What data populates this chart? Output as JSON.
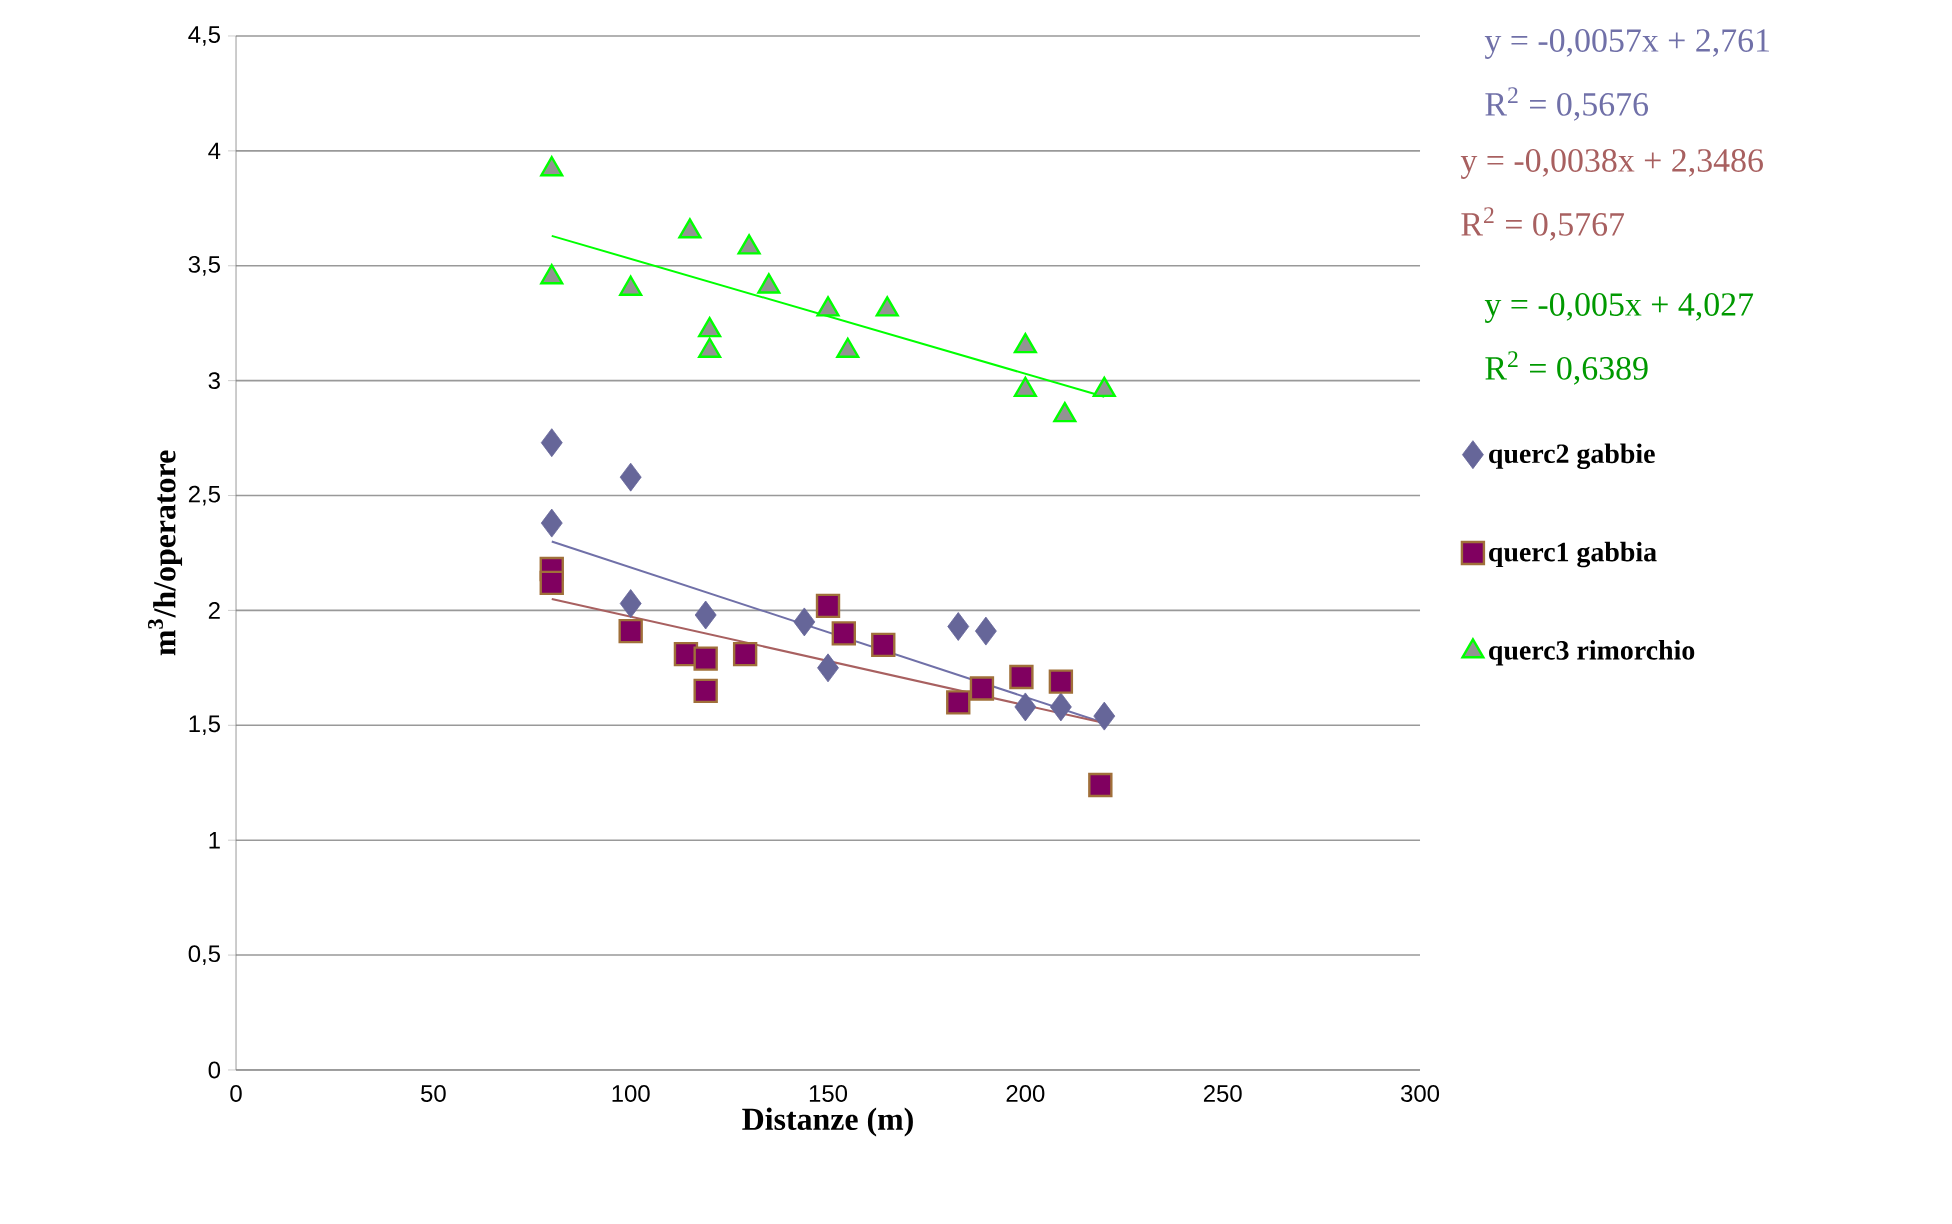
{
  "chart_data": {
    "type": "scatter",
    "xlabel": "Distanze (m)",
    "ylabel": "m$^{3}$/h/operatore",
    "series": [
      {
        "name": "querc2 gabbie",
        "color": "#666699",
        "marker": "diamond",
        "x": [
          80,
          80,
          100,
          100,
          116,
          119,
          129,
          144,
          150,
          183,
          190,
          200,
          209,
          220
        ],
        "values": [
          2.73,
          2.38,
          2.58,
          2.03,
          null,
          1.98,
          null,
          1.95,
          1.75,
          1.93,
          1.91,
          1.58,
          1.58,
          1.54
        ]
      },
      {
        "name": "querc1 gabbia",
        "color": "#800060",
        "marker": "square",
        "x": [
          80,
          80,
          100,
          114,
          119,
          119,
          129,
          150,
          154,
          164,
          183,
          189,
          199,
          209,
          219
        ],
        "values": [
          2.18,
          2.12,
          1.91,
          1.81,
          1.79,
          1.65,
          1.81,
          2.02,
          1.9,
          1.85,
          1.6,
          1.66,
          1.71,
          1.69,
          1.24
        ]
      },
      {
        "name": "querc3 rimorchio",
        "color": "#939393",
        "marker": "triangle",
        "x": [
          80,
          80,
          100,
          115,
          120,
          120,
          130,
          135,
          150,
          155,
          165,
          200,
          200,
          210,
          220
        ],
        "values": [
          3.92,
          3.45,
          3.4,
          3.65,
          3.22,
          3.13,
          3.58,
          3.41,
          3.31,
          3.13,
          3.31,
          3.15,
          2.96,
          2.85,
          2.96
        ]
      },
      {
        "type": "line",
        "color": "#7070a8",
        "x": [
          80,
          220
        ],
        "values": [
          2.3,
          1.51
        ]
      },
      {
        "type": "line",
        "color": "#a86060",
        "x": [
          80,
          220
        ],
        "values": [
          2.05,
          1.51
        ]
      },
      {
        "type": "line",
        "color": "#00ff00",
        "x": [
          80,
          220
        ],
        "values": [
          3.63,
          2.93
        ]
      }
    ],
    "annotations": [
      "y = -0,0057x + 2,761",
      "R$^{2}$ = 0,5676",
      "y = -0,0038x + 2,3486",
      "R$^{2}$ = 0,5767",
      "y = -0,005x + 4,027",
      "R$^{2}$ = 0,6389"
    ],
    "xlim": [
      0,
      300
    ],
    "xticks": [
      0,
      50,
      100,
      150,
      200,
      250,
      300
    ],
    "ylim": [
      0,
      4.5
    ],
    "yticks": [
      0,
      {
        "value": 0.5,
        "label": "0,5"
      },
      1,
      {
        "value": 1.5,
        "label": "1,5"
      },
      2,
      {
        "value": 2.5,
        "label": "2,5"
      },
      3,
      {
        "value": 3.5,
        "label": "3,5"
      },
      4,
      {
        "value": 4.5,
        "label": "4,5"
      }
    ],
    "grid": "y",
    "legend": "right"
  }
}
